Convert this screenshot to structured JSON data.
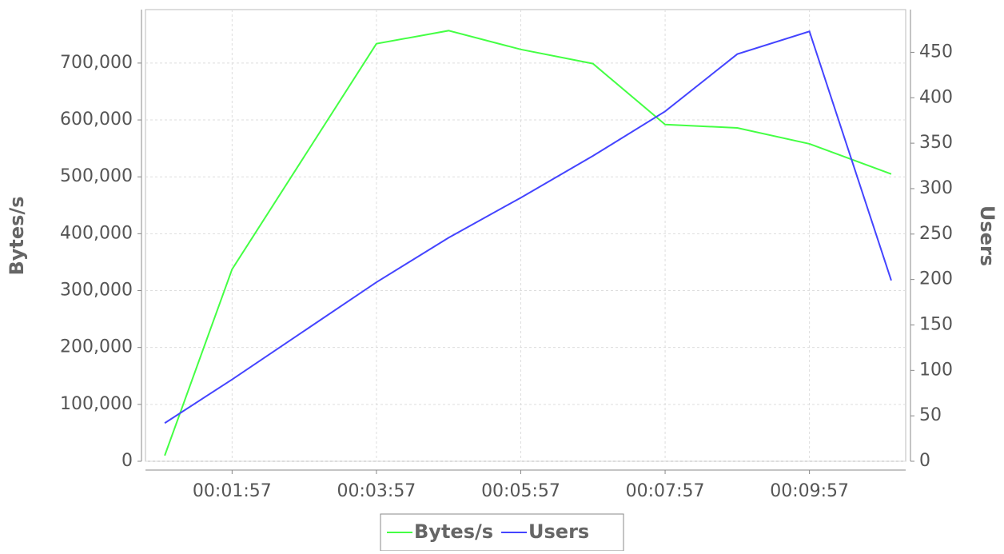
{
  "chart_data": {
    "type": "line",
    "ylabel": "Bytes/s",
    "y2label": "Users",
    "x": [
      61,
      117,
      237,
      297,
      357,
      417,
      477,
      537,
      597,
      665
    ],
    "xlim": [
      45,
      677
    ],
    "xticks": [
      {
        "value": 117,
        "label": "00:01:57"
      },
      {
        "value": 237,
        "label": "00:03:57"
      },
      {
        "value": 357,
        "label": "00:05:57"
      },
      {
        "value": 477,
        "label": "00:07:57"
      },
      {
        "value": 597,
        "label": "00:09:57"
      }
    ],
    "ylim": [
      0,
      794000
    ],
    "yticks": [
      0,
      {
        "value": 100000,
        "label": "100,000"
      },
      {
        "value": 200000,
        "label": "200,000"
      },
      {
        "value": 300000,
        "label": "300,000"
      },
      {
        "value": 400000,
        "label": "400,000"
      },
      {
        "value": 500000,
        "label": "500,000"
      },
      {
        "value": 600000,
        "label": "600,000"
      },
      {
        "value": 700000,
        "label": "700,000"
      }
    ],
    "y2lim": [
      0,
      497
    ],
    "y2ticks": [
      0,
      50,
      100,
      150,
      200,
      250,
      300,
      350,
      400,
      450
    ],
    "grid": true,
    "series": [
      {
        "name": "Bytes/s",
        "color": "#44ff44",
        "values": [
          10000,
          337500,
          734000,
          757000,
          724000,
          699000,
          592000,
          586000,
          558000,
          505000
        ]
      },
      {
        "name": "Users",
        "color": "#4444ff",
        "axis": "y2",
        "values": [
          42,
          90,
          197,
          246,
          290,
          336,
          385,
          448,
          473,
          199
        ]
      }
    ]
  }
}
